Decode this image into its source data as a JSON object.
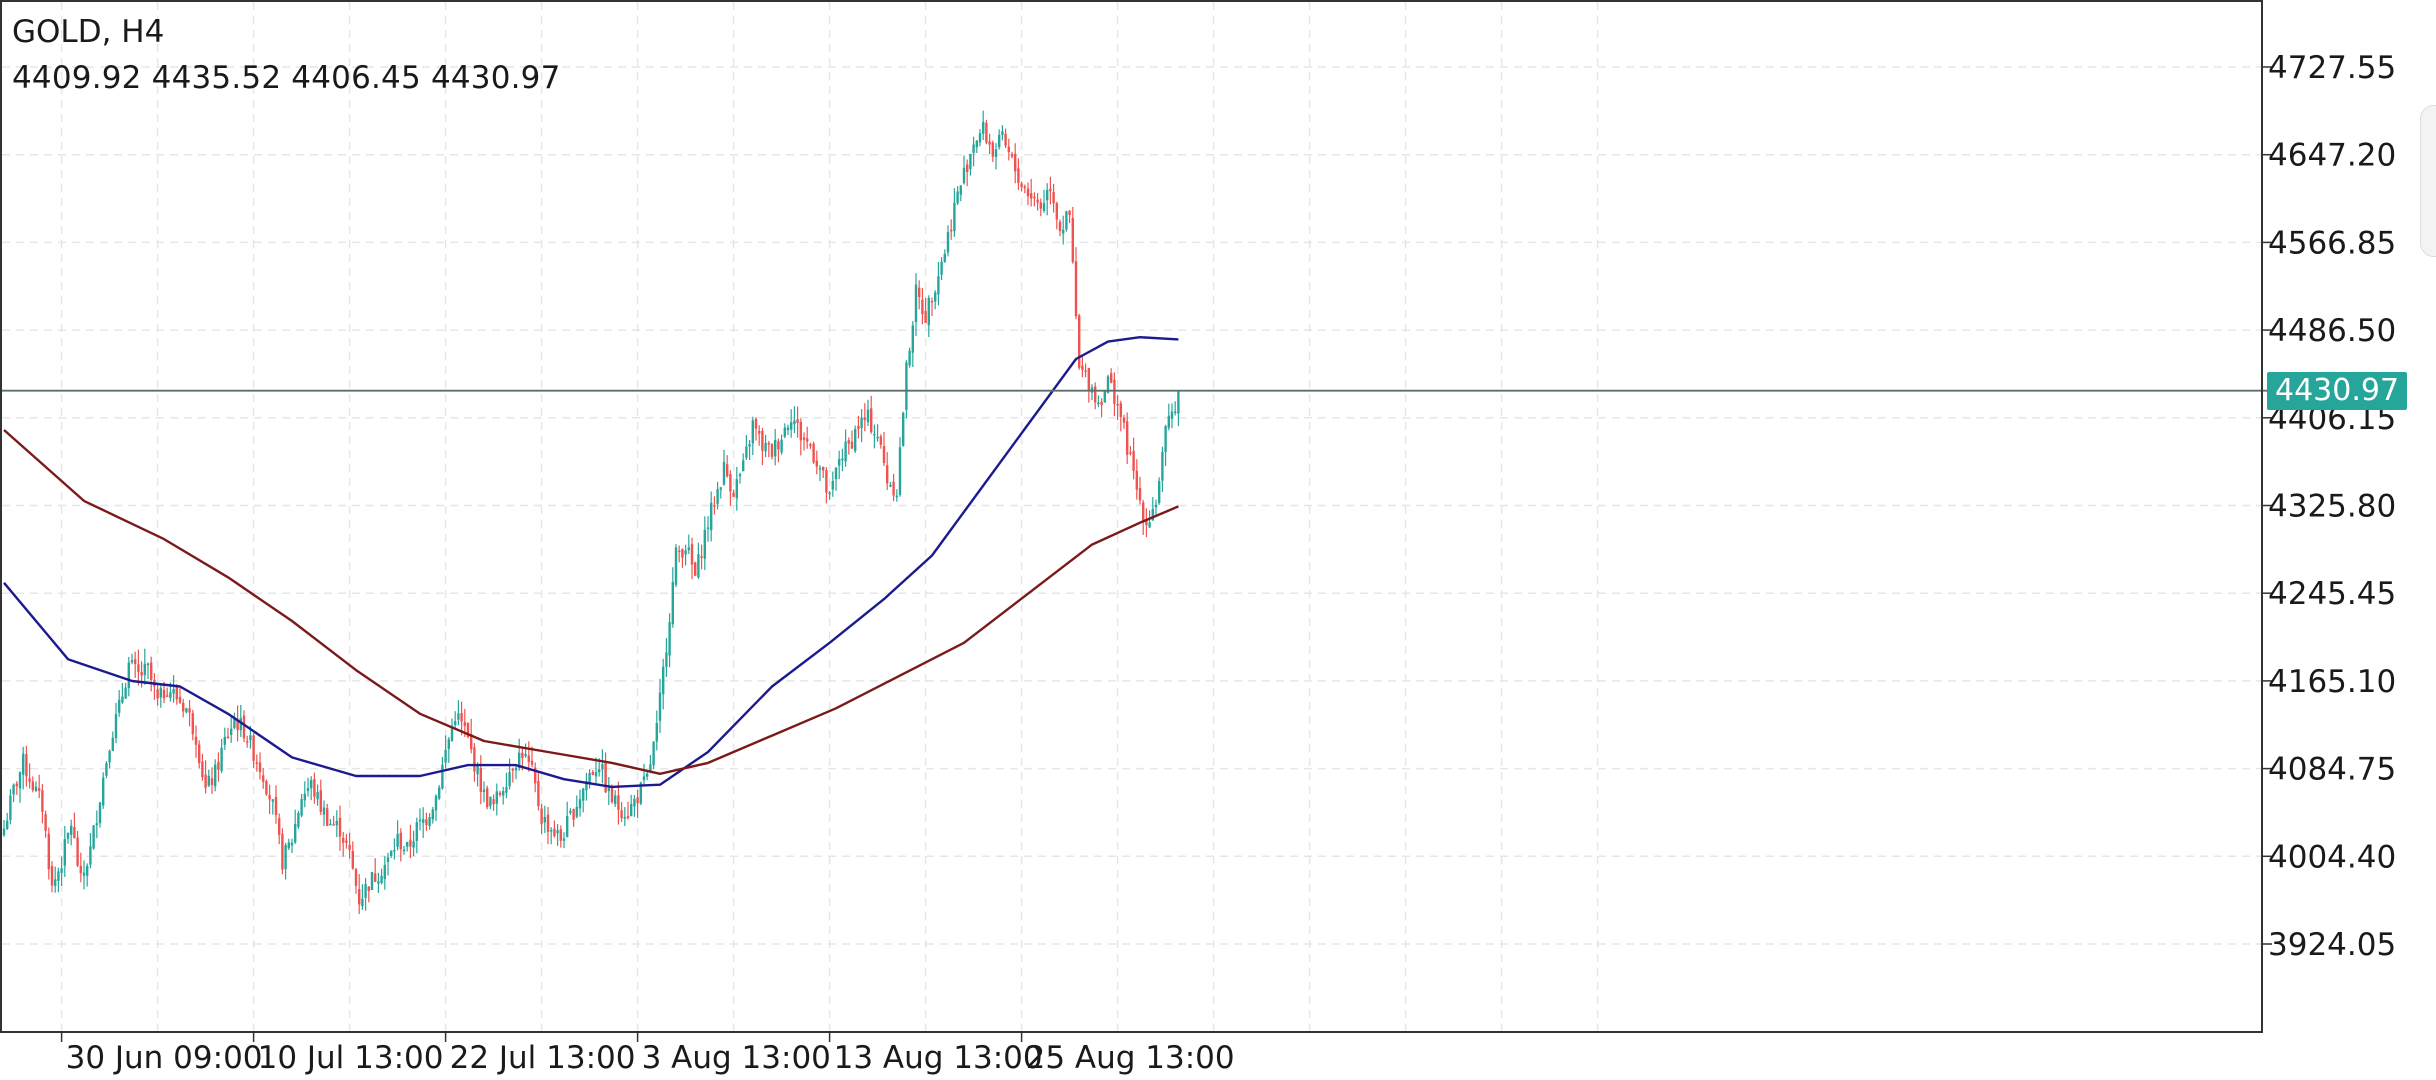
{
  "header": {
    "title": "GOLD, H4",
    "ohlc": "4409.92 4435.52 4406.45 4430.97"
  },
  "current_price_label": "4430.97",
  "colors": {
    "bull": "#26a69a",
    "bear": "#ef5350",
    "ma_fast": "#1b1b8f",
    "ma_slow": "#7a1a1a",
    "price_line": "#5f6f6f",
    "grid": "#e6e6e6",
    "axis": "#333333"
  },
  "chart_data": {
    "type": "line",
    "series_note": "",
    "y_ticks": [
      4727.55,
      4647.2,
      4566.85,
      4486.5,
      4406.15,
      4325.8,
      4245.45,
      4165.1,
      4084.75,
      4004.4,
      3924.05
    ],
    "ylim": [
      3840,
      4800
    ],
    "x_ticks": [
      {
        "label": "30 Jun 09:00",
        "bar": 18
      },
      {
        "label": "10 Jul 13:00",
        "bar": 78
      },
      {
        "label": "22 Jul 13:00",
        "bar": 138
      },
      {
        "label": "3 Aug 13:00",
        "bar": 198
      },
      {
        "label": "13 Aug 13:00",
        "bar": 258
      },
      {
        "label": "25 Aug 13:00",
        "bar": 318
      }
    ],
    "bar_count": 520,
    "current_price": 4430.97,
    "grid": true,
    "close_path": [
      [
        0,
        4030
      ],
      [
        3,
        4065
      ],
      [
        6,
        4090
      ],
      [
        9,
        4070
      ],
      [
        12,
        4050
      ],
      [
        15,
        3975
      ],
      [
        18,
        4000
      ],
      [
        21,
        4035
      ],
      [
        24,
        3980
      ],
      [
        27,
        4010
      ],
      [
        30,
        4060
      ],
      [
        33,
        4110
      ],
      [
        36,
        4140
      ],
      [
        39,
        4180
      ],
      [
        42,
        4170
      ],
      [
        45,
        4175
      ],
      [
        48,
        4145
      ],
      [
        51,
        4160
      ],
      [
        54,
        4150
      ],
      [
        57,
        4140
      ],
      [
        60,
        4115
      ],
      [
        63,
        4065
      ],
      [
        66,
        4080
      ],
      [
        69,
        4110
      ],
      [
        72,
        4130
      ],
      [
        75,
        4120
      ],
      [
        78,
        4100
      ],
      [
        81,
        4080
      ],
      [
        84,
        4050
      ],
      [
        87,
        4000
      ],
      [
        90,
        4020
      ],
      [
        93,
        4060
      ],
      [
        96,
        4070
      ],
      [
        99,
        4050
      ],
      [
        102,
        4035
      ],
      [
        105,
        4030
      ],
      [
        108,
        4005
      ],
      [
        111,
        3965
      ],
      [
        114,
        3980
      ],
      [
        117,
        3990
      ],
      [
        120,
        4000
      ],
      [
        123,
        4020
      ],
      [
        126,
        4010
      ],
      [
        129,
        4030
      ],
      [
        132,
        4040
      ],
      [
        135,
        4060
      ],
      [
        138,
        4100
      ],
      [
        141,
        4135
      ],
      [
        144,
        4120
      ],
      [
        147,
        4090
      ],
      [
        150,
        4060
      ],
      [
        153,
        4050
      ],
      [
        156,
        4070
      ],
      [
        159,
        4090
      ],
      [
        162,
        4100
      ],
      [
        165,
        4080
      ],
      [
        168,
        4040
      ],
      [
        171,
        4030
      ],
      [
        174,
        4020
      ],
      [
        177,
        4040
      ],
      [
        180,
        4060
      ],
      [
        183,
        4080
      ],
      [
        186,
        4090
      ],
      [
        189,
        4060
      ],
      [
        192,
        4050
      ],
      [
        195,
        4045
      ],
      [
        198,
        4060
      ],
      [
        201,
        4075
      ],
      [
        204,
        4120
      ],
      [
        207,
        4200
      ],
      [
        210,
        4280
      ],
      [
        213,
        4290
      ],
      [
        216,
        4260
      ],
      [
        219,
        4300
      ],
      [
        222,
        4330
      ],
      [
        225,
        4360
      ],
      [
        228,
        4340
      ],
      [
        231,
        4360
      ],
      [
        234,
        4400
      ],
      [
        237,
        4380
      ],
      [
        240,
        4375
      ],
      [
        243,
        4390
      ],
      [
        246,
        4410
      ],
      [
        249,
        4390
      ],
      [
        252,
        4380
      ],
      [
        255,
        4360
      ],
      [
        258,
        4330
      ],
      [
        261,
        4370
      ],
      [
        264,
        4380
      ],
      [
        267,
        4400
      ],
      [
        270,
        4405
      ],
      [
        273,
        4390
      ],
      [
        276,
        4350
      ],
      [
        279,
        4340
      ],
      [
        282,
        4450
      ],
      [
        285,
        4520
      ],
      [
        288,
        4500
      ],
      [
        291,
        4530
      ],
      [
        294,
        4560
      ],
      [
        297,
        4600
      ],
      [
        300,
        4630
      ],
      [
        303,
        4660
      ],
      [
        306,
        4670
      ],
      [
        309,
        4650
      ],
      [
        312,
        4660
      ],
      [
        315,
        4640
      ],
      [
        318,
        4620
      ],
      [
        321,
        4610
      ],
      [
        324,
        4600
      ],
      [
        327,
        4620
      ],
      [
        330,
        4580
      ],
      [
        333,
        4590
      ],
      [
        336,
        4450
      ],
      [
        339,
        4440
      ],
      [
        342,
        4420
      ],
      [
        345,
        4440
      ],
      [
        348,
        4420
      ],
      [
        351,
        4380
      ],
      [
        354,
        4340
      ],
      [
        357,
        4310
      ],
      [
        360,
        4330
      ],
      [
        363,
        4390
      ],
      [
        366,
        4420
      ],
      [
        367,
        4431
      ]
    ],
    "series": [
      {
        "name": "",
        "color_key": "ma_fast",
        "points": [
          [
            0,
            4255
          ],
          [
            20,
            4185
          ],
          [
            40,
            4165
          ],
          [
            55,
            4160
          ],
          [
            70,
            4135
          ],
          [
            90,
            4095
          ],
          [
            110,
            4078
          ],
          [
            130,
            4078
          ],
          [
            145,
            4088
          ],
          [
            160,
            4088
          ],
          [
            175,
            4075
          ],
          [
            190,
            4068
          ],
          [
            205,
            4070
          ],
          [
            220,
            4100
          ],
          [
            240,
            4160
          ],
          [
            258,
            4200
          ],
          [
            275,
            4240
          ],
          [
            290,
            4280
          ],
          [
            305,
            4340
          ],
          [
            320,
            4400
          ],
          [
            335,
            4460
          ],
          [
            345,
            4476
          ],
          [
            355,
            4480
          ],
          [
            367,
            4478
          ]
        ]
      },
      {
        "name": "",
        "color_key": "ma_slow",
        "points": [
          [
            0,
            4395
          ],
          [
            25,
            4330
          ],
          [
            50,
            4295
          ],
          [
            70,
            4260
          ],
          [
            90,
            4220
          ],
          [
            110,
            4175
          ],
          [
            130,
            4135
          ],
          [
            150,
            4110
          ],
          [
            170,
            4100
          ],
          [
            190,
            4090
          ],
          [
            205,
            4080
          ],
          [
            220,
            4090
          ],
          [
            240,
            4115
          ],
          [
            260,
            4140
          ],
          [
            280,
            4170
          ],
          [
            300,
            4200
          ],
          [
            320,
            4245
          ],
          [
            340,
            4290
          ],
          [
            355,
            4310
          ],
          [
            367,
            4325
          ]
        ]
      }
    ]
  }
}
